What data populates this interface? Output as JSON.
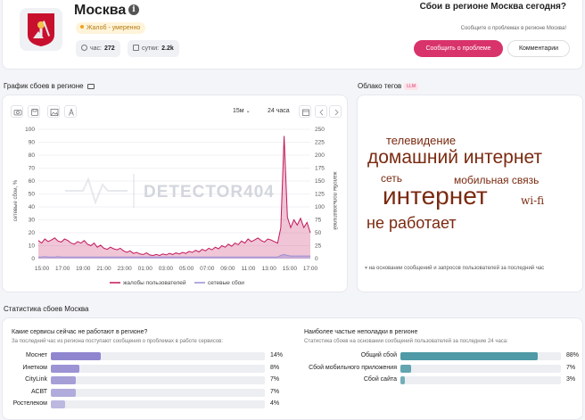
{
  "header": {
    "city": "Москва",
    "badge": "Жалоб - умеренно",
    "stat_hour_label": "час:",
    "stat_hour_value": "272",
    "stat_day_label": "сутки:",
    "stat_day_value": "2.2k",
    "question": "Сбои в регионе Москва сегодня?",
    "question_sub": "Сообщите о проблемах в регионе Москва!",
    "report_button": "Сообщить о проблеме",
    "comments_button": "Комментарии"
  },
  "chart_section": {
    "title": "График сбоев в регионе",
    "range_a": "15м",
    "range_b": "24 часа",
    "watermark": "DETECTOR404"
  },
  "chart_data": {
    "type": "area",
    "x_ticks": [
      "15:00",
      "17:00",
      "19:00",
      "21:00",
      "23:00",
      "01:00",
      "03:00",
      "05:00",
      "07:00",
      "09:00",
      "11:00",
      "13:00",
      "15:00",
      "17:00"
    ],
    "y_left_ticks": [
      "100",
      "90",
      "80",
      "70",
      "60",
      "50",
      "40",
      "30",
      "20",
      "10",
      "0"
    ],
    "y_right_ticks": [
      "250",
      "225",
      "200",
      "175",
      "150",
      "125",
      "100",
      "75",
      "50",
      "25",
      "0"
    ],
    "ylabel_left": "сетевые сбои, %",
    "ylabel_right": "жалобы пользователей",
    "ylim_left": [
      0,
      100
    ],
    "ylim_right": [
      0,
      250
    ],
    "legend": [
      "жалобы пользователей",
      "сетевые сбои"
    ],
    "series": [
      {
        "name": "жалобы пользователей",
        "color": "#c2185b",
        "values": [
          35,
          30,
          38,
          33,
          36,
          40,
          34,
          32,
          38,
          35,
          30,
          28,
          33,
          30,
          35,
          28,
          25,
          30,
          22,
          26,
          20,
          18,
          22,
          19,
          17,
          20,
          15,
          12,
          15,
          10,
          12,
          9,
          8,
          11,
          7,
          6,
          8,
          6,
          9,
          7,
          10,
          8,
          11,
          9,
          12,
          10,
          14,
          12,
          16,
          13,
          18,
          15,
          20,
          17,
          22,
          19,
          25,
          22,
          28,
          24,
          30,
          27,
          34,
          30,
          38,
          33,
          36,
          40,
          35,
          32,
          38,
          36,
          33,
          30,
          60,
          237,
          80,
          60,
          75,
          65,
          78,
          60,
          70,
          50
        ]
      },
      {
        "name": "сетевые сбои",
        "color": "#9c8fd6",
        "values": [
          3,
          3,
          4,
          3,
          3,
          3,
          4,
          3,
          3,
          3,
          3,
          3,
          3,
          3,
          3,
          3,
          3,
          3,
          3,
          3,
          3,
          3,
          3,
          3,
          3,
          3,
          3,
          3,
          3,
          3,
          3,
          3,
          3,
          3,
          3,
          3,
          3,
          3,
          3,
          3,
          3,
          3,
          3,
          3,
          3,
          3,
          3,
          3,
          3,
          3,
          3,
          3,
          3,
          3,
          3,
          3,
          3,
          3,
          3,
          3,
          3,
          3,
          3,
          3,
          3,
          3,
          3,
          3,
          3,
          3,
          3,
          3,
          3,
          3,
          6,
          8,
          6,
          5,
          5,
          5,
          5,
          5,
          5,
          5
        ]
      }
    ]
  },
  "cloud_section": {
    "title": "Облако тегов",
    "llm_badge": "LLM",
    "tags": [
      "телевидение",
      "домашний интернет",
      "сеть",
      "мобильная связь",
      "интернет",
      "wi-fi",
      "не работает"
    ],
    "note": "на основании сообщений и запросов пользователей за последний час"
  },
  "stats_section": {
    "title": "Статистика сбоев Москва",
    "left": {
      "title": "Какие сервисы сейчас не работают в регионе?",
      "subtitle": "За последний час из региона поступают сообщения о проблемах в работе сервисов:",
      "rows": [
        {
          "label": "Моснет",
          "value": 14,
          "pct": "14%"
        },
        {
          "label": "Инетком",
          "value": 8,
          "pct": "8%"
        },
        {
          "label": "CityLink",
          "value": 7,
          "pct": "7%"
        },
        {
          "label": "АСВТ",
          "value": 7,
          "pct": "7%"
        },
        {
          "label": "Ростелеком",
          "value": 4,
          "pct": "4%"
        }
      ]
    },
    "right": {
      "title": "Наиболее частые неполадки в регионе",
      "subtitle": "Статистика сбоев на основании сообщений пользователей за последние 24 часа:",
      "rows": [
        {
          "label": "Общий сбой",
          "value": 88,
          "pct": "88%"
        },
        {
          "label": "Сбой мобильного приложения",
          "value": 7,
          "pct": "7%"
        },
        {
          "label": "Сбой сайта",
          "value": 3,
          "pct": "3%"
        }
      ]
    }
  },
  "colors": {
    "accent": "#d8336a",
    "left_bars": "#8f86cf",
    "right_bars": "#4f9aa6",
    "tags": "#7a2a10"
  }
}
